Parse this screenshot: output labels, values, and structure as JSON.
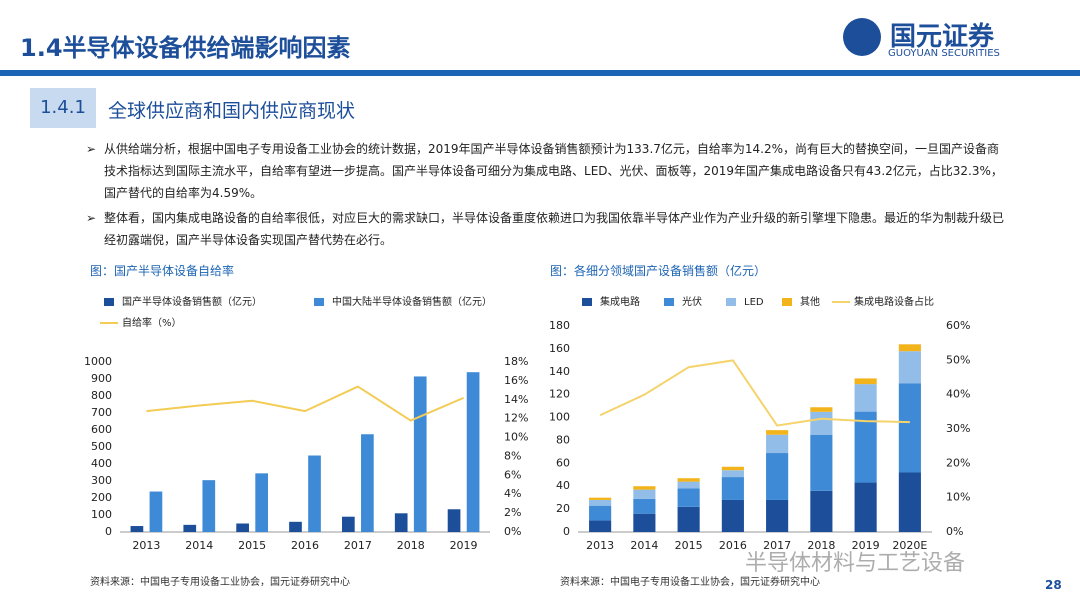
{
  "header": {
    "title": "1.4半导体设备供给端影响因素",
    "logo_cn": "国元证券",
    "logo_en": "GUOYUAN SECURITIES"
  },
  "section": {
    "number": "1.4.1",
    "title": "全球供应商和国内供应商现状"
  },
  "bullets": [
    "从供给端分析，根据中国电子专用设备工业协会的统计数据，2019年国产半导体设备销售额预计为133.7亿元，自给率为14.2%，尚有巨大的替换空间，一旦国产设备商技术指标达到国际主流水平，自给率有望进一步提高。国产半导体设备可细分为集成电路、LED、光伏、面板等，2019年国产集成电路设备只有43.2亿元，占比32.3%，国产替代的自给率为4.59%。",
    "整体看，国内集成电路设备的自给率很低，对应巨大的需求缺口，半导体设备重度依赖进口为我国依靠半导体产业作为产业升级的新引擎埋下隐患。最近的华为制裁升级已经初露端倪，国产半导体设备实现国产替代势在必行。"
  ],
  "watermark": "半导体材料与工艺设备",
  "page_number": "28",
  "chart_data": [
    {
      "type": "bar",
      "title": "图：国产半导体设备自给率",
      "source": "资料来源：中国电子专用设备工业协会，国元证券研究中心",
      "categories": [
        "2013",
        "2014",
        "2015",
        "2016",
        "2017",
        "2018",
        "2019"
      ],
      "series": [
        {
          "name": "国产半导体设备销售额（亿元）",
          "color": "#1c4e9a",
          "values": [
            35,
            42,
            50,
            60,
            90,
            110,
            133.7
          ]
        },
        {
          "name": "中国大陆半导体设备销售额（亿元）",
          "color": "#3f8ad6",
          "values": [
            238,
            305,
            345,
            450,
            575,
            915,
            940
          ]
        },
        {
          "name": "自给率（%）",
          "type": "line",
          "axis": "y2",
          "color": "#f2cc55",
          "values": [
            12.8,
            13.4,
            13.9,
            12.8,
            15.4,
            11.8,
            14.2
          ]
        }
      ],
      "stacked": false,
      "ylim": [
        0,
        1000
      ],
      "yticks": [
        0,
        100,
        200,
        300,
        400,
        500,
        600,
        700,
        800,
        900,
        1000
      ],
      "y2lim": [
        0,
        18
      ],
      "y2ticks": [
        {
          "value": 0,
          "label": "0%"
        },
        {
          "value": 2,
          "label": "2%"
        },
        {
          "value": 4,
          "label": "4%"
        },
        {
          "value": 6,
          "label": "6%"
        },
        {
          "value": 8,
          "label": "8%"
        },
        {
          "value": 10,
          "label": "10%"
        },
        {
          "value": 12,
          "label": "12%"
        },
        {
          "value": 14,
          "label": "14%"
        },
        {
          "value": 16,
          "label": "16%"
        },
        {
          "value": 18,
          "label": "18%"
        }
      ]
    },
    {
      "type": "bar",
      "title": "图：各细分领域国产设备销售额（亿元）",
      "source": "资料来源：中国电子专用设备工业协会，国元证券研究中心",
      "categories": [
        "2013",
        "2014",
        "2015",
        "2016",
        "2017",
        "2018",
        "2019",
        "2020E"
      ],
      "series": [
        {
          "name": "集成电路",
          "color": "#1c4e9a",
          "values": [
            10,
            16,
            22,
            28,
            28,
            36,
            43.2,
            52
          ]
        },
        {
          "name": "光伏",
          "color": "#3f8ad6",
          "values": [
            13,
            13,
            16,
            20,
            41,
            49,
            62,
            78
          ]
        },
        {
          "name": "LED",
          "color": "#92bde9",
          "values": [
            5,
            8,
            6,
            6,
            16,
            20,
            24,
            28
          ]
        },
        {
          "name": "其他",
          "color": "#f2b31b",
          "values": [
            2,
            3,
            3,
            3,
            4,
            4,
            5,
            6
          ]
        },
        {
          "name": "集成电路设备占比",
          "type": "line",
          "axis": "y2",
          "color": "#f5d36b",
          "values": [
            34,
            40,
            48,
            50,
            31,
            33,
            32.3,
            32
          ]
        }
      ],
      "stacked": true,
      "ylim": [
        0,
        180
      ],
      "yticks": [
        0,
        20,
        40,
        60,
        80,
        100,
        120,
        140,
        160,
        180
      ],
      "y2lim": [
        0,
        60
      ],
      "y2ticks": [
        {
          "value": 0,
          "label": "0%"
        },
        {
          "value": 10,
          "label": "10%"
        },
        {
          "value": 20,
          "label": "20%"
        },
        {
          "value": 30,
          "label": "30%"
        },
        {
          "value": 40,
          "label": "40%"
        },
        {
          "value": 50,
          "label": "50%"
        },
        {
          "value": 60,
          "label": "60%"
        }
      ]
    }
  ]
}
